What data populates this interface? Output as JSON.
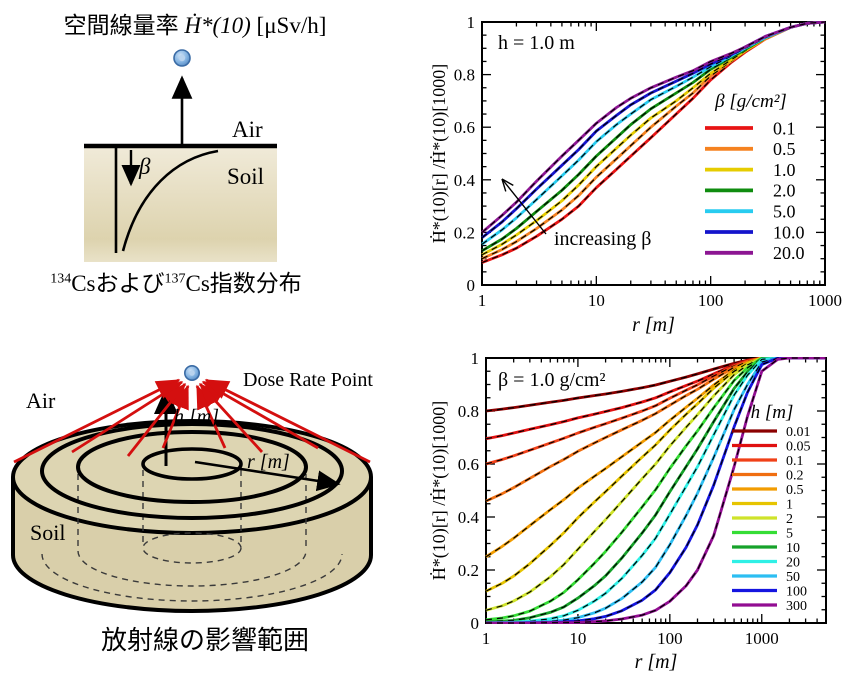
{
  "exp_profile": {
    "title_jp": "空間線量率 ",
    "title_math": "Ḣ*(10)",
    "title_units": " [μSv/h]",
    "air_label": "Air",
    "soil_label": "Soil",
    "beta_symbol": "β",
    "caption": {
      "sup1": "134",
      "txt1": "Csおよび",
      "sup2": "137",
      "txt2": "Cs指数分布"
    }
  },
  "geometry_panel": {
    "air_label": "Air",
    "soil_label": "Soil",
    "dose_point_label": "Dose Rate Point",
    "h_label": "h [m]",
    "r_label": "r [m]",
    "caption": "放射線の影響範囲"
  },
  "chart_data": [
    {
      "id": "beta-chart",
      "type": "line",
      "annotation": "h = 1.0 m",
      "extra_annotation": "increasing β",
      "xlabel": "r [m]",
      "ylabel": "Ḣ*(10)[r] /Ḣ*(10)[1000]",
      "xscale": "log",
      "xlim": [
        1,
        1000
      ],
      "ylim": [
        0,
        1
      ],
      "xticks": [
        1,
        10,
        100,
        1000
      ],
      "yticks": [
        0,
        0.2,
        0.4,
        0.6,
        0.8,
        1
      ],
      "legend_title": "β [g/cm²]",
      "x": [
        1,
        1.5,
        2,
        3,
        5,
        7,
        10,
        15,
        20,
        30,
        50,
        70,
        100,
        150,
        200,
        300,
        500,
        700,
        1000
      ],
      "series": [
        {
          "name": "0.1",
          "color": "#e81414",
          "values": [
            0.085,
            0.115,
            0.14,
            0.185,
            0.25,
            0.3,
            0.37,
            0.44,
            0.49,
            0.56,
            0.65,
            0.71,
            0.78,
            0.845,
            0.885,
            0.935,
            0.98,
            0.995,
            1.0
          ]
        },
        {
          "name": "0.5",
          "color": "#f58220",
          "values": [
            0.1,
            0.135,
            0.165,
            0.215,
            0.285,
            0.34,
            0.41,
            0.48,
            0.53,
            0.6,
            0.68,
            0.73,
            0.795,
            0.85,
            0.89,
            0.935,
            0.98,
            0.995,
            1.0
          ]
        },
        {
          "name": "1.0",
          "color": "#e6cc00",
          "values": [
            0.115,
            0.155,
            0.19,
            0.245,
            0.32,
            0.38,
            0.45,
            0.52,
            0.57,
            0.635,
            0.7,
            0.75,
            0.805,
            0.855,
            0.89,
            0.94,
            0.98,
            0.995,
            1.0
          ]
        },
        {
          "name": "2.0",
          "color": "#0f8c0f",
          "values": [
            0.13,
            0.175,
            0.215,
            0.28,
            0.36,
            0.42,
            0.49,
            0.56,
            0.61,
            0.67,
            0.73,
            0.77,
            0.82,
            0.865,
            0.895,
            0.94,
            0.98,
            0.995,
            1.0
          ]
        },
        {
          "name": "5.0",
          "color": "#28ccf0",
          "values": [
            0.155,
            0.21,
            0.255,
            0.325,
            0.415,
            0.475,
            0.545,
            0.61,
            0.65,
            0.705,
            0.755,
            0.79,
            0.83,
            0.87,
            0.9,
            0.94,
            0.98,
            0.995,
            1.0
          ]
        },
        {
          "name": "10.0",
          "color": "#1414cc",
          "values": [
            0.18,
            0.24,
            0.29,
            0.365,
            0.455,
            0.515,
            0.585,
            0.645,
            0.685,
            0.73,
            0.775,
            0.805,
            0.84,
            0.875,
            0.905,
            0.945,
            0.98,
            0.995,
            1.0
          ]
        },
        {
          "name": "20.0",
          "color": "#8c1592",
          "values": [
            0.2,
            0.265,
            0.315,
            0.395,
            0.49,
            0.55,
            0.615,
            0.675,
            0.71,
            0.75,
            0.79,
            0.815,
            0.85,
            0.88,
            0.905,
            0.945,
            0.98,
            0.995,
            1.0
          ]
        }
      ]
    },
    {
      "id": "height-chart",
      "type": "line",
      "annotation": "β = 1.0 g/cm²",
      "xlabel": "r [m]",
      "ylabel": "Ḣ*(10)[r] /Ḣ*(10)[1000]",
      "xscale": "log",
      "xlim": [
        1,
        5000
      ],
      "ylim": [
        0,
        1
      ],
      "xticks": [
        1,
        10,
        100,
        1000
      ],
      "yticks": [
        0,
        0.2,
        0.4,
        0.6,
        0.8,
        1
      ],
      "legend_title": "h [m]",
      "x": [
        1,
        1.5,
        2,
        3,
        5,
        7,
        10,
        15,
        20,
        30,
        50,
        70,
        100,
        150,
        200,
        300,
        500,
        700,
        1000,
        1500,
        2000,
        3000,
        5000
      ],
      "series": [
        {
          "name": "0.01",
          "color": "#8b0000",
          "values": [
            0.8,
            0.807,
            0.813,
            0.822,
            0.833,
            0.84,
            0.849,
            0.858,
            0.864,
            0.874,
            0.888,
            0.898,
            0.912,
            0.928,
            0.94,
            0.958,
            0.98,
            0.992,
            1.0,
            1.0,
            1.0,
            1.0,
            1.0
          ]
        },
        {
          "name": "0.05",
          "color": "#e01010",
          "values": [
            0.695,
            0.707,
            0.717,
            0.731,
            0.748,
            0.76,
            0.774,
            0.788,
            0.798,
            0.813,
            0.834,
            0.85,
            0.872,
            0.896,
            0.913,
            0.94,
            0.974,
            0.99,
            1.0,
            1.0,
            1.0,
            1.0,
            1.0
          ]
        },
        {
          "name": "0.1",
          "color": "#f04018",
          "values": [
            0.6,
            0.617,
            0.631,
            0.652,
            0.679,
            0.697,
            0.717,
            0.738,
            0.752,
            0.773,
            0.8,
            0.82,
            0.848,
            0.878,
            0.899,
            0.932,
            0.97,
            0.988,
            1.0,
            1.0,
            1.0,
            1.0,
            1.0
          ]
        },
        {
          "name": "0.2",
          "color": "#f06e10",
          "values": [
            0.46,
            0.488,
            0.511,
            0.546,
            0.59,
            0.617,
            0.648,
            0.679,
            0.7,
            0.729,
            0.765,
            0.79,
            0.822,
            0.858,
            0.882,
            0.92,
            0.965,
            0.986,
            1.0,
            1.0,
            1.0,
            1.0,
            1.0
          ]
        },
        {
          "name": "0.5",
          "color": "#f29c00",
          "values": [
            0.25,
            0.289,
            0.32,
            0.368,
            0.427,
            0.465,
            0.509,
            0.553,
            0.583,
            0.627,
            0.683,
            0.719,
            0.765,
            0.814,
            0.848,
            0.898,
            0.955,
            0.982,
            1.0,
            1.0,
            1.0,
            1.0,
            1.0
          ]
        },
        {
          "name": "1",
          "color": "#e6c400",
          "values": [
            0.12,
            0.15,
            0.177,
            0.224,
            0.292,
            0.34,
            0.397,
            0.456,
            0.496,
            0.554,
            0.626,
            0.672,
            0.728,
            0.787,
            0.827,
            0.886,
            0.95,
            0.98,
            1.0,
            1.0,
            1.0,
            1.0,
            1.0
          ]
        },
        {
          "name": "2",
          "color": "#cfe32a",
          "values": [
            0.048,
            0.065,
            0.083,
            0.117,
            0.174,
            0.22,
            0.278,
            0.344,
            0.39,
            0.458,
            0.545,
            0.6,
            0.668,
            0.738,
            0.786,
            0.857,
            0.937,
            0.974,
            1.0,
            1.0,
            1.0,
            1.0,
            1.0
          ]
        },
        {
          "name": "5",
          "color": "#35dd35",
          "values": [
            0.012,
            0.019,
            0.027,
            0.045,
            0.082,
            0.115,
            0.163,
            0.224,
            0.27,
            0.342,
            0.438,
            0.503,
            0.583,
            0.668,
            0.725,
            0.812,
            0.915,
            0.963,
            1.0,
            1.0,
            1.0,
            1.0,
            1.0
          ]
        },
        {
          "name": "10",
          "color": "#16a22a",
          "values": [
            0.004,
            0.007,
            0.01,
            0.02,
            0.04,
            0.06,
            0.094,
            0.14,
            0.178,
            0.245,
            0.34,
            0.408,
            0.495,
            0.59,
            0.657,
            0.76,
            0.885,
            0.948,
            0.998,
            1.0,
            1.0,
            1.0,
            1.0
          ]
        },
        {
          "name": "20",
          "color": "#2ff0e6",
          "values": [
            0.001,
            0.002,
            0.003,
            0.007,
            0.016,
            0.027,
            0.048,
            0.082,
            0.112,
            0.168,
            0.255,
            0.32,
            0.41,
            0.515,
            0.59,
            0.71,
            0.86,
            0.935,
            0.995,
            1.0,
            1.0,
            1.0,
            1.0
          ]
        },
        {
          "name": "50",
          "color": "#2cbef2",
          "values": [
            0.0,
            0.001,
            0.001,
            0.003,
            0.006,
            0.011,
            0.02,
            0.038,
            0.056,
            0.092,
            0.155,
            0.21,
            0.295,
            0.405,
            0.49,
            0.625,
            0.805,
            0.9,
            0.985,
            1.0,
            1.0,
            1.0,
            1.0
          ]
        },
        {
          "name": "100",
          "color": "#1515e0",
          "values": [
            0.0,
            0.0,
            0.0,
            0.001,
            0.002,
            0.004,
            0.008,
            0.016,
            0.025,
            0.046,
            0.086,
            0.125,
            0.19,
            0.285,
            0.37,
            0.52,
            0.74,
            0.87,
            0.975,
            1.0,
            1.0,
            1.0,
            1.0
          ]
        },
        {
          "name": "300",
          "color": "#920d92",
          "values": [
            0.0,
            0.0,
            0.0,
            0.0,
            0.001,
            0.001,
            0.002,
            0.005,
            0.008,
            0.015,
            0.03,
            0.048,
            0.082,
            0.14,
            0.2,
            0.33,
            0.59,
            0.78,
            0.95,
            0.995,
            1.0,
            1.0,
            1.0
          ]
        }
      ]
    }
  ]
}
